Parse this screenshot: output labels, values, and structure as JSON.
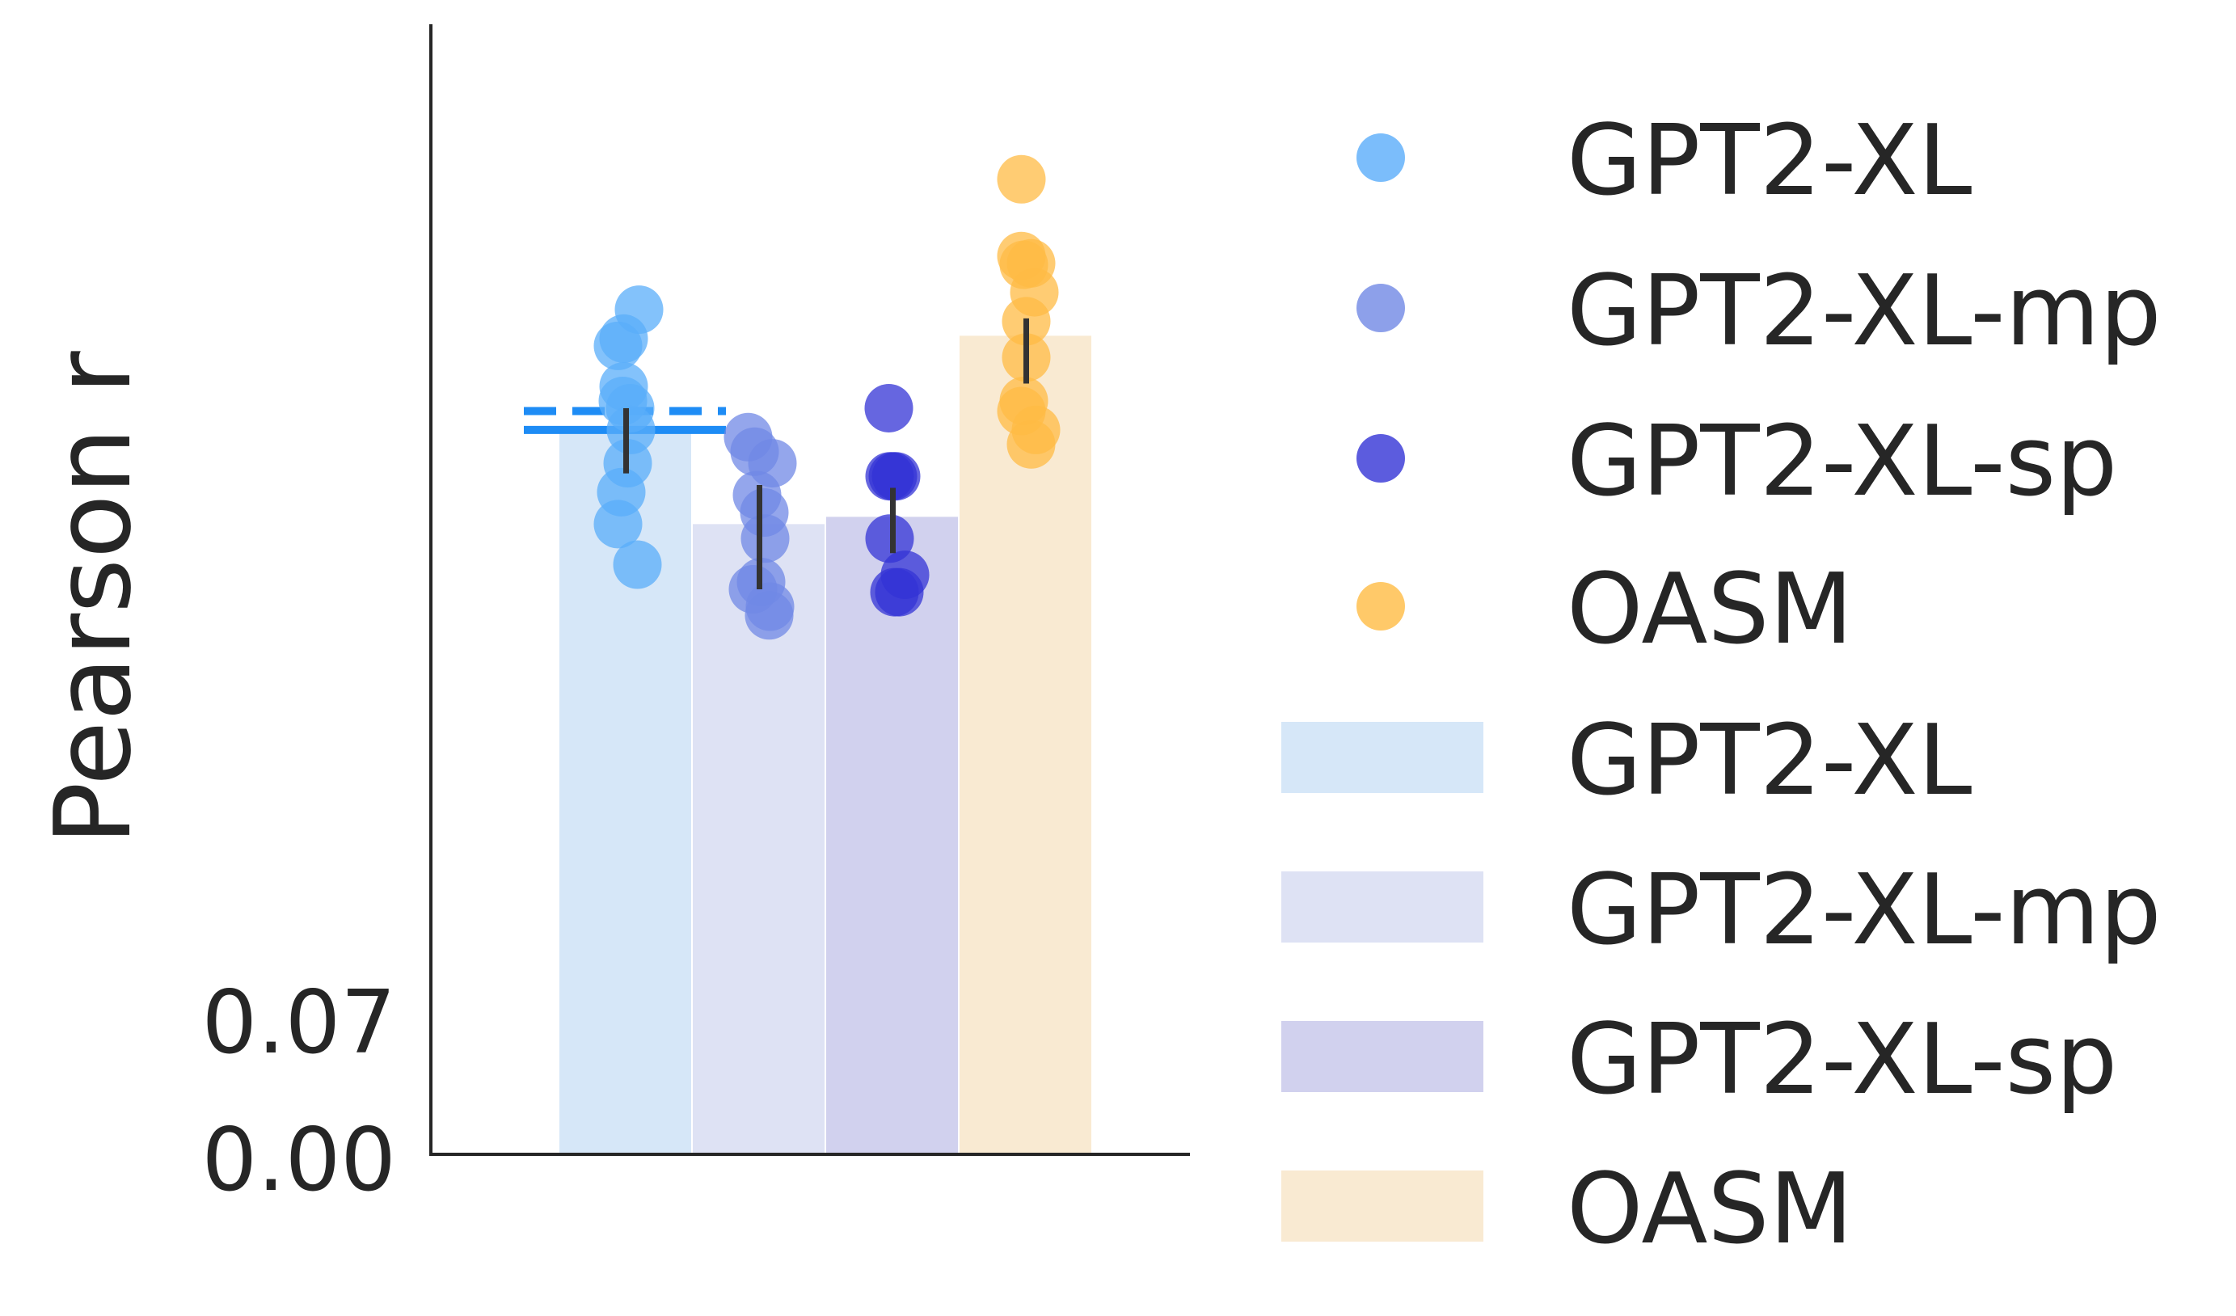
{
  "chart_data": {
    "type": "bar",
    "ylabel": "Pearson r",
    "y_ticks": [
      "0.00",
      "0.07"
    ],
    "ylim": [
      0,
      0.78
    ],
    "grid": false,
    "legend_placement": "right-outside",
    "categories": [
      "GPT2-XL",
      "GPT2-XL-mp",
      "GPT2-XL-sp",
      "OASM"
    ],
    "values": [
      0.5,
      0.435,
      0.44,
      0.565
    ],
    "bar_colors": [
      "#d6e7f8",
      "#dee2f4",
      "#d1d1ee",
      "#f9ead2"
    ],
    "point_colors": [
      "#5aadfa",
      "#7088e5",
      "#3333d6",
      "#ffbb44"
    ],
    "error_bars": [
      [
        0.47,
        0.515
      ],
      [
        0.39,
        0.462
      ],
      [
        0.415,
        0.46
      ],
      [
        0.532,
        0.577
      ]
    ],
    "points": [
      [
        0.583,
        0.558,
        0.563,
        0.53,
        0.52,
        0.515,
        0.5,
        0.477,
        0.457,
        0.435,
        0.407
      ],
      [
        0.495,
        0.485,
        0.477,
        0.455,
        0.443,
        0.425,
        0.395,
        0.39,
        0.378,
        0.372
      ],
      [
        0.515,
        0.468,
        0.468,
        0.468,
        0.425,
        0.4,
        0.388,
        0.388
      ],
      [
        0.673,
        0.62,
        0.615,
        0.614,
        0.595,
        0.575,
        0.55,
        0.52,
        0.513,
        0.5,
        0.49
      ]
    ],
    "reference_lines": [
      {
        "style": "solid",
        "value": 0.5,
        "color": "#1e8cf5"
      },
      {
        "style": "dashed",
        "value": 0.513,
        "color": "#1e8cf5"
      }
    ],
    "legend": {
      "point_entries": [
        "GPT2-XL",
        "GPT2-XL-mp",
        "GPT2-XL-sp",
        "OASM"
      ],
      "bar_entries": [
        "GPT2-XL",
        "GPT2-XL-mp",
        "GPT2-XL-sp",
        "OASM"
      ]
    }
  }
}
